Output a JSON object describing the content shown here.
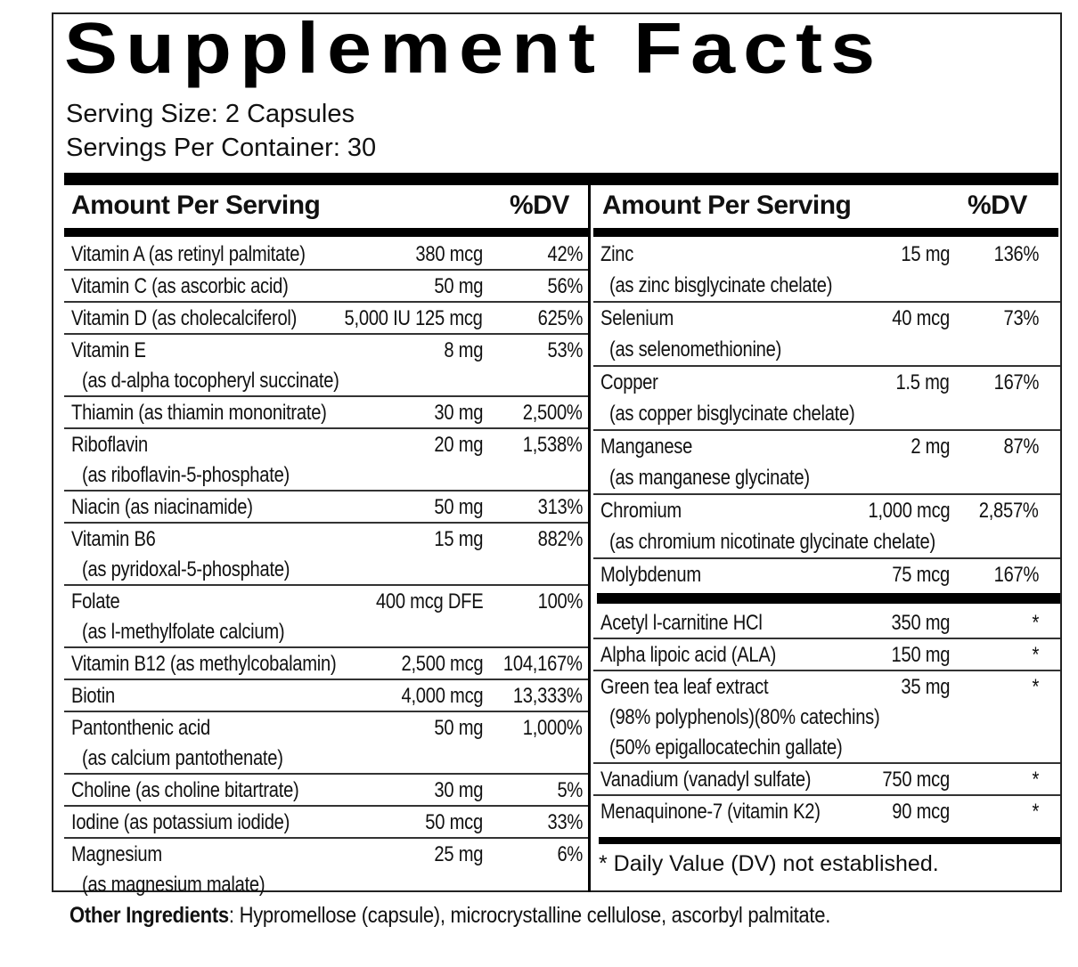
{
  "title": "Supplement Facts",
  "serving_size": "Serving Size: 2 Capsules",
  "servings_per_container": "Servings Per Container: 30",
  "header": {
    "amount": "Amount Per Serving",
    "dv": "%DV"
  },
  "left_rows": [
    {
      "lines": [
        "Vitamin A (as retinyl palmitate)"
      ],
      "amount": "380 mcg",
      "dv": "42%"
    },
    {
      "lines": [
        "Vitamin C (as ascorbic acid)"
      ],
      "amount": "50 mg",
      "dv": "56%"
    },
    {
      "lines": [
        "Vitamin D (as cholecalciferol)"
      ],
      "amount": "5,000 IU 125 mcg",
      "dv": "625%"
    },
    {
      "lines": [
        "Vitamin E",
        "(as d-alpha tocopheryl succinate)"
      ],
      "amount": "8 mg",
      "dv": "53%"
    },
    {
      "lines": [
        "Thiamin (as thiamin mononitrate)"
      ],
      "amount": "30 mg",
      "dv": "2,500%"
    },
    {
      "lines": [
        "Riboflavin",
        "(as riboflavin-5-phosphate)"
      ],
      "amount": "20 mg",
      "dv": "1,538%"
    },
    {
      "lines": [
        "Niacin (as niacinamide)"
      ],
      "amount": "50 mg",
      "dv": "313%"
    },
    {
      "lines": [
        "Vitamin B6",
        "(as pyridoxal-5-phosphate)"
      ],
      "amount": "15 mg",
      "dv": "882%"
    },
    {
      "lines": [
        "Folate",
        "(as l-methylfolate calcium)"
      ],
      "amount": "400 mcg DFE",
      "dv": "100%"
    },
    {
      "lines": [
        "Vitamin B12 (as methylcobalamin)"
      ],
      "amount": "2,500 mcg",
      "dv": "104,167%"
    },
    {
      "lines": [
        "Biotin"
      ],
      "amount": "4,000 mcg",
      "dv": "13,333%"
    },
    {
      "lines": [
        "Pantonthenic acid",
        "(as calcium pantothenate)"
      ],
      "amount": "50 mg",
      "dv": "1,000%"
    },
    {
      "lines": [
        "Choline (as choline bitartrate)"
      ],
      "amount": "30 mg",
      "dv": "5%"
    },
    {
      "lines": [
        "Iodine (as potassium iodide)"
      ],
      "amount": "50 mcg",
      "dv": "33%"
    },
    {
      "lines": [
        "Magnesium",
        "(as magnesium malate)"
      ],
      "amount": "25 mg",
      "dv": "6%"
    }
  ],
  "right_rows": [
    {
      "lines": [
        "Zinc",
        "(as zinc bisglycinate chelate)"
      ],
      "amount": "15 mg",
      "dv": "136%"
    },
    {
      "lines": [
        "Selenium",
        "(as selenomethionine)"
      ],
      "amount": "40 mcg",
      "dv": "73%"
    },
    {
      "lines": [
        "Copper",
        "(as copper bisglycinate chelate)"
      ],
      "amount": "1.5 mg",
      "dv": "167%"
    },
    {
      "lines": [
        "Manganese",
        "(as manganese glycinate)"
      ],
      "amount": "2 mg",
      "dv": "87%"
    },
    {
      "lines": [
        "Chromium",
        "(as chromium nicotinate glycinate chelate)"
      ],
      "amount": "1,000 mcg",
      "dv": "2,857%"
    },
    {
      "lines": [
        "Molybdenum"
      ],
      "amount": "75 mcg",
      "dv": "167%"
    }
  ],
  "right_extra_rows": [
    {
      "lines": [
        "Acetyl l-carnitine HCl"
      ],
      "amount": "350 mg",
      "dv": "*"
    },
    {
      "lines": [
        "Alpha lipoic acid (ALA)"
      ],
      "amount": "150 mg",
      "dv": "*"
    },
    {
      "lines": [
        "Green tea leaf extract",
        "(98% polyphenols)(80% catechins)",
        "(50% epigallocatechin gallate)"
      ],
      "amount": "35 mg",
      "dv": "*"
    },
    {
      "lines": [
        "Vanadium (vanadyl sulfate)"
      ],
      "amount": "750 mcg",
      "dv": "*"
    },
    {
      "lines": [
        "Menaquinone-7 (vitamin K2)"
      ],
      "amount": "90 mcg",
      "dv": "*"
    }
  ],
  "footnote": "* Daily Value (DV) not established.",
  "other_ingredients": {
    "label": "Other Ingredients",
    "text": ": Hypromellose (capsule), microcrystalline cellulose, ascorbyl palmitate."
  }
}
